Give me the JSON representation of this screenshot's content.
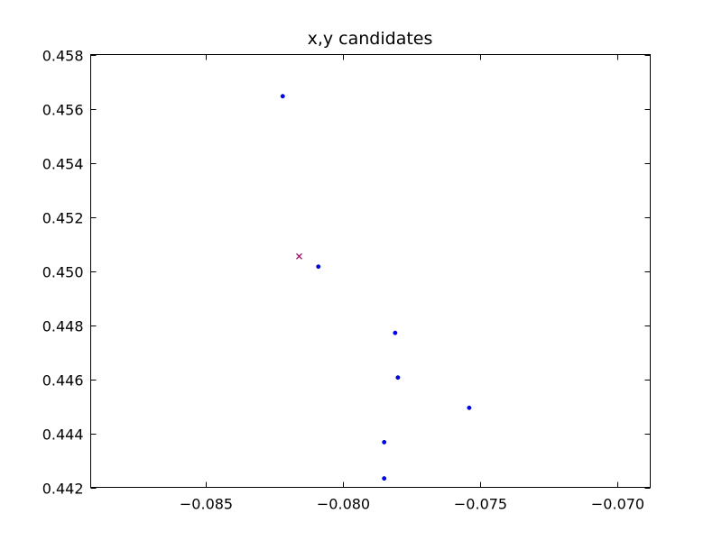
{
  "chart_data": {
    "type": "scatter",
    "title": "x,y candidates",
    "xlabel": "",
    "ylabel": "",
    "xlim": [
      -0.0892,
      -0.0688
    ],
    "ylim": [
      0.442,
      0.458
    ],
    "grid": false,
    "x_ticks": [
      -0.085,
      -0.08,
      -0.075,
      -0.07
    ],
    "x_tick_labels": [
      "−0.085",
      "−0.080",
      "−0.075",
      "−0.070"
    ],
    "y_ticks": [
      0.442,
      0.444,
      0.446,
      0.448,
      0.45,
      0.452,
      0.454,
      0.456,
      0.458
    ],
    "y_tick_labels": [
      "0.442",
      "0.444",
      "0.446",
      "0.448",
      "0.450",
      "0.452",
      "0.454",
      "0.456",
      "0.458"
    ],
    "series": [
      {
        "marker": "dot",
        "color": "#0000ff",
        "points": [
          {
            "x": -0.0822,
            "y": 0.45646
          },
          {
            "x": -0.0809,
            "y": 0.45016
          },
          {
            "x": -0.0781,
            "y": 0.44771
          },
          {
            "x": -0.078,
            "y": 0.44606
          },
          {
            "x": -0.0754,
            "y": 0.44494
          },
          {
            "x": -0.0785,
            "y": 0.44367
          },
          {
            "x": -0.0785,
            "y": 0.44233
          }
        ]
      },
      {
        "marker": "x",
        "color": "#9b0060",
        "points": [
          {
            "x": -0.0816,
            "y": 0.45054
          }
        ]
      }
    ]
  }
}
